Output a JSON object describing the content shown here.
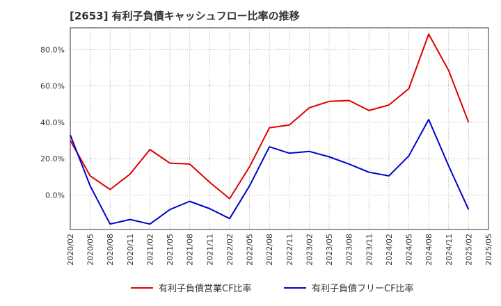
{
  "chart_data": {
    "type": "line",
    "title": "[2653]  有利子負債キャッシュフロー比率の推移",
    "xlabel": "",
    "ylabel": "",
    "ylim": [
      -19,
      92
    ],
    "y_ticks": [
      0,
      20,
      40,
      60,
      80
    ],
    "y_tick_labels": [
      "0.0%",
      "20.0%",
      "40.0%",
      "60.0%",
      "80.0%"
    ],
    "x_tick_labels": [
      "2020/02",
      "2020/05",
      "2020/08",
      "2020/11",
      "2021/02",
      "2021/05",
      "2021/08",
      "2021/11",
      "2022/02",
      "2022/05",
      "2022/08",
      "2022/11",
      "2023/02",
      "2023/05",
      "2023/08",
      "2023/11",
      "2024/02",
      "2024/05",
      "2024/08",
      "2024/11",
      "2025/02",
      "2025/05"
    ],
    "grid": true,
    "legend_position": "bottom",
    "colors": {
      "series1": "#dd0000",
      "series2": "#0000cc",
      "grid": "#999999",
      "axis": "#333333"
    },
    "series": [
      {
        "name": "有利子負債営業CF比率",
        "color": "#dd0000",
        "values": [
          30,
          10.5,
          3,
          11.5,
          25,
          17.5,
          17,
          7,
          -2,
          15.5,
          37,
          38.5,
          48,
          51.5,
          52,
          46.5,
          49.5,
          58.5,
          88.5,
          68.5,
          40
        ]
      },
      {
        "name": "有利子負債フリーCF比率",
        "color": "#0000cc",
        "values": [
          33,
          5,
          -16,
          -13.5,
          -16,
          -8,
          -3.5,
          -7.5,
          -13,
          5,
          26.5,
          23,
          24,
          21,
          17,
          12.5,
          10.5,
          21.5,
          41.5,
          16,
          -8
        ]
      }
    ]
  }
}
